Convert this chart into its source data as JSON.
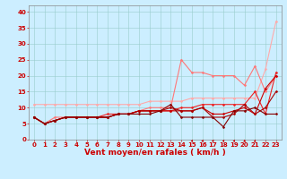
{
  "x": [
    0,
    1,
    2,
    3,
    4,
    5,
    6,
    7,
    8,
    9,
    10,
    11,
    12,
    13,
    14,
    15,
    16,
    17,
    18,
    19,
    20,
    21,
    22,
    23
  ],
  "series": [
    {
      "color": "#ffaaaa",
      "linewidth": 0.8,
      "marker": "D",
      "markersize": 1.5,
      "y": [
        11,
        11,
        11,
        11,
        11,
        11,
        11,
        11,
        11,
        11,
        11,
        12,
        12,
        12,
        12,
        13,
        13,
        13,
        13,
        13,
        13,
        13,
        22,
        37
      ]
    },
    {
      "color": "#ff7777",
      "linewidth": 0.8,
      "marker": "D",
      "markersize": 1.5,
      "y": [
        7,
        5,
        7,
        7,
        7,
        7,
        7,
        7,
        8,
        8,
        9,
        10,
        10,
        10,
        25,
        21,
        21,
        20,
        20,
        20,
        17,
        23,
        15,
        20
      ]
    },
    {
      "color": "#ee2222",
      "linewidth": 0.8,
      "marker": "D",
      "markersize": 1.5,
      "y": [
        7,
        5,
        6,
        7,
        7,
        7,
        7,
        8,
        8,
        8,
        9,
        9,
        9,
        9,
        10,
        10,
        11,
        11,
        11,
        11,
        11,
        15,
        8,
        21
      ]
    },
    {
      "color": "#cc0000",
      "linewidth": 0.8,
      "marker": "D",
      "markersize": 1.5,
      "y": [
        7,
        5,
        6,
        7,
        7,
        7,
        7,
        7,
        8,
        8,
        9,
        9,
        9,
        9,
        9,
        9,
        10,
        8,
        8,
        9,
        10,
        8,
        16,
        20
      ]
    },
    {
      "color": "#aa0000",
      "linewidth": 0.8,
      "marker": "D",
      "markersize": 1.5,
      "y": [
        7,
        5,
        6,
        7,
        7,
        7,
        7,
        7,
        8,
        8,
        9,
        9,
        9,
        10,
        9,
        9,
        10,
        7,
        7,
        8,
        11,
        8,
        10,
        15
      ]
    },
    {
      "color": "#880000",
      "linewidth": 0.8,
      "marker": "D",
      "markersize": 1.5,
      "y": [
        7,
        5,
        6,
        7,
        7,
        7,
        7,
        7,
        8,
        8,
        8,
        8,
        9,
        11,
        7,
        7,
        7,
        7,
        4,
        9,
        9,
        10,
        8,
        8
      ]
    }
  ],
  "xlabel": "Vent moyen/en rafales ( km/h )",
  "xlim": [
    -0.5,
    23.5
  ],
  "ylim": [
    0,
    42
  ],
  "yticks": [
    0,
    5,
    10,
    15,
    20,
    25,
    30,
    35,
    40
  ],
  "xticks": [
    0,
    1,
    2,
    3,
    4,
    5,
    6,
    7,
    8,
    9,
    10,
    11,
    12,
    13,
    14,
    15,
    16,
    17,
    18,
    19,
    20,
    21,
    22,
    23
  ],
  "bg_color": "#cceeff",
  "grid_color": "#99cccc",
  "xlabel_fontsize": 6.5,
  "tick_fontsize": 5.0,
  "arrow_angles": [
    225,
    225,
    225,
    225,
    225,
    225,
    225,
    225,
    225,
    225,
    225,
    225,
    225,
    225,
    225,
    200,
    200,
    200,
    200,
    200,
    180,
    180,
    135,
    45
  ],
  "arrow_color": "#cc0000"
}
